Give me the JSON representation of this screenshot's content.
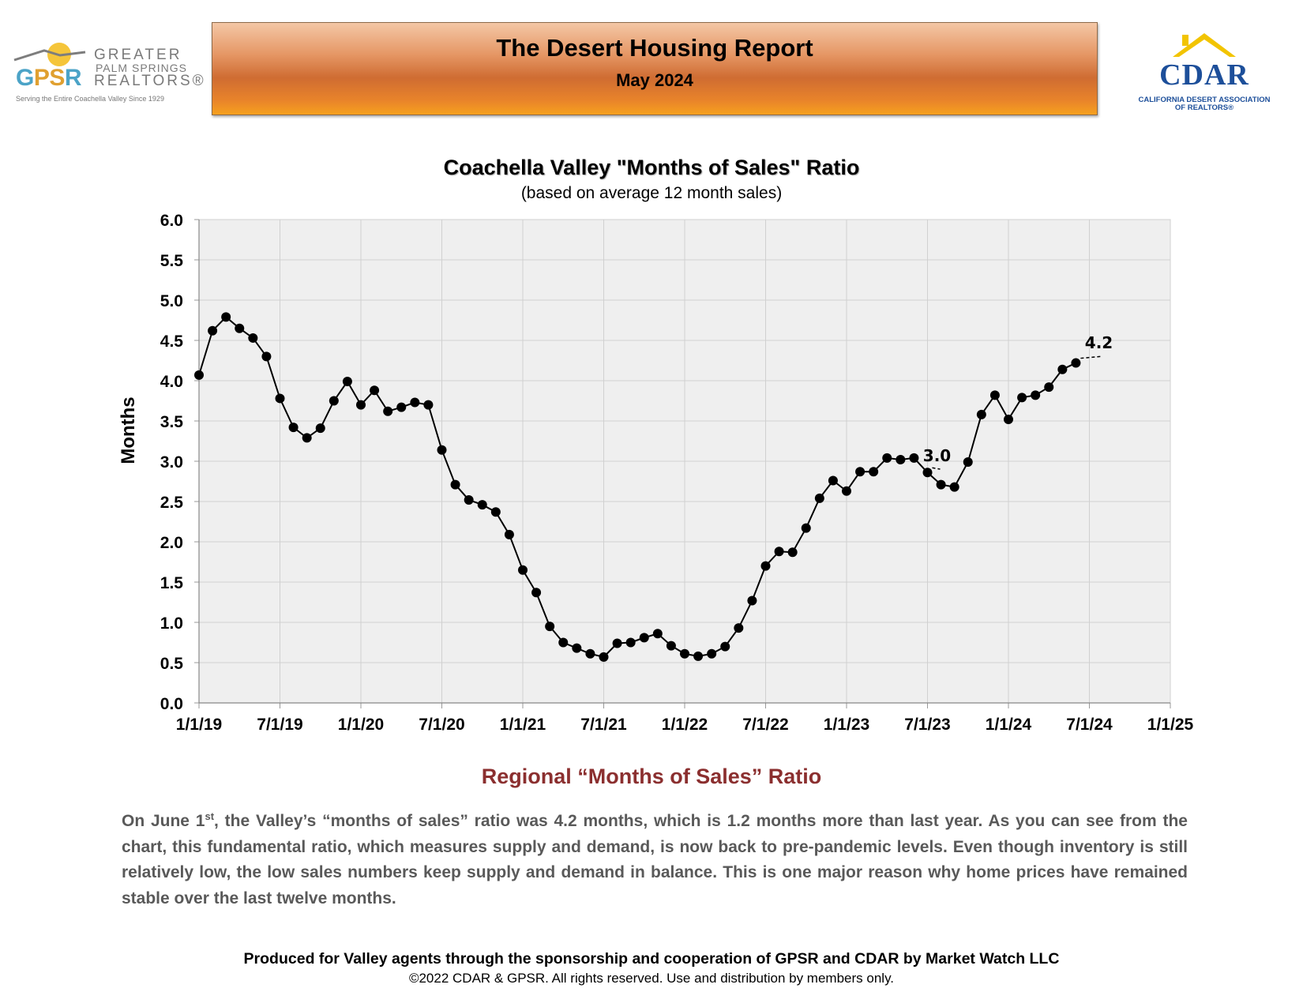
{
  "gpsr_logo": {
    "letters": [
      "G",
      "PS",
      "R"
    ],
    "name_line1": "GREATER",
    "name_line2": "PALM SPRINGS",
    "name_line3": "REALTORS®",
    "tagline": "Serving the Entire Coachella Valley Since 1929"
  },
  "header": {
    "title": "The Desert Housing Report",
    "date": "May 2024"
  },
  "cdar_logo": {
    "text": "CDAR",
    "sub_line1": "CALIFORNIA DESERT ASSOCIATION",
    "sub_line2": "OF REALTORS®"
  },
  "chart_data": {
    "type": "line",
    "title": "Coachella Valley \"Months of Sales\" Ratio",
    "subtitle": "(based on average 12 month sales)",
    "ylabel": "Months",
    "xlabel": "",
    "ylim": [
      0,
      6
    ],
    "yticks": [
      0.0,
      0.5,
      1.0,
      1.5,
      2.0,
      2.5,
      3.0,
      3.5,
      4.0,
      4.5,
      5.0,
      5.5,
      6.0
    ],
    "ytick_labels": [
      "0.0",
      "0.5",
      "1.0",
      "1.5",
      "2.0",
      "2.5",
      "3.0",
      "3.5",
      "4.0",
      "4.5",
      "5.0",
      "5.5",
      "6.0"
    ],
    "xlim_months": [
      0,
      72
    ],
    "xtick_labels": [
      "1/1/19",
      "7/1/19",
      "1/1/20",
      "7/1/20",
      "1/1/21",
      "7/1/21",
      "1/1/22",
      "7/1/22",
      "1/1/23",
      "7/1/23",
      "1/1/24",
      "7/1/24",
      "1/1/25"
    ],
    "grid": true,
    "series": [
      {
        "name": "Months of Sales",
        "x_months": [
          0,
          1,
          2,
          3,
          4,
          5,
          6,
          7,
          8,
          9,
          10,
          11,
          12,
          13,
          14,
          15,
          16,
          17,
          18,
          19,
          20,
          21,
          22,
          23,
          24,
          25,
          26,
          27,
          28,
          29,
          30,
          31,
          32,
          33,
          34,
          35,
          36,
          37,
          38,
          39,
          40,
          41,
          42,
          43,
          44,
          45,
          46,
          47,
          48,
          49,
          50,
          51,
          52,
          53,
          54,
          55,
          56,
          57,
          58,
          59,
          60,
          61,
          62,
          63,
          64,
          65
        ],
        "values": [
          4.07,
          4.62,
          4.79,
          4.65,
          4.53,
          4.3,
          3.78,
          3.42,
          3.29,
          3.41,
          3.75,
          3.99,
          3.7,
          3.88,
          3.62,
          3.67,
          3.73,
          3.7,
          3.14,
          2.71,
          2.52,
          2.46,
          2.37,
          2.09,
          1.65,
          1.37,
          0.95,
          0.75,
          0.68,
          0.61,
          0.57,
          0.74,
          0.75,
          0.81,
          0.86,
          0.71,
          0.61,
          0.58,
          0.61,
          0.7,
          0.93,
          1.27,
          1.7,
          1.88,
          1.87,
          2.17,
          2.54,
          2.76,
          2.63,
          2.87,
          2.87,
          3.04,
          3.02,
          3.04,
          2.86,
          2.71,
          2.68,
          2.99,
          3.58,
          3.82,
          3.52,
          3.79,
          3.82,
          3.92,
          4.14,
          4.22
        ]
      }
    ],
    "annotations": [
      {
        "text": "3.0",
        "x_month": 54,
        "y": 3.0
      },
      {
        "text": "4.2",
        "x_month": 66,
        "y": 4.4
      }
    ]
  },
  "regional": {
    "heading": "Regional “Months of Sales” Ratio",
    "para_start": "On June 1",
    "para_sup": "st",
    "para_rest": ", the Valley’s “months of sales” ratio was 4.2 months, which is 1.2 months more than last year. As you can see from the chart, this fundamental ratio, which measures supply and demand, is now back to pre-pandemic levels. Even though inventory is still relatively low, the low sales numbers keep supply and demand in balance. This is one major reason why home prices have remained stable over the last twelve months."
  },
  "footer": {
    "sponsor": "Produced for Valley agents through the sponsorship and cooperation of GPSR and CDAR by Market Watch LLC",
    "copyright": "©2022 CDAR & GPSR.  All rights reserved.  Use and distribution by members only."
  }
}
